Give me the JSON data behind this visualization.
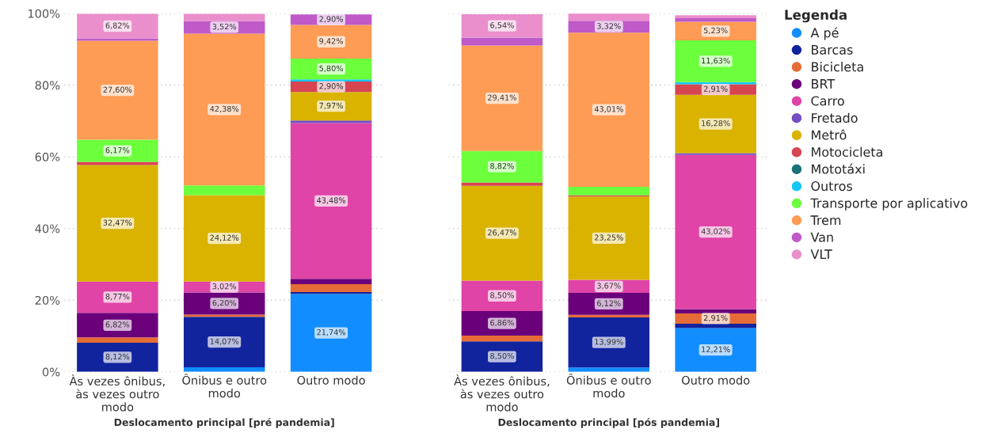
{
  "chart_data": [
    {
      "type": "bar",
      "stacked": true,
      "xlabel": "Deslocamento principal [pré pandemia]",
      "categories": [
        "Às vezes ônibus, às vezes outro modo",
        "Ônibus e outro modo",
        "Outro modo"
      ],
      "ylim": [
        0,
        100
      ],
      "yticks": [
        {
          "value": 0,
          "label": "0%"
        },
        {
          "value": 20,
          "label": "20%"
        },
        {
          "value": 40,
          "label": "40%"
        },
        {
          "value": 60,
          "label": "60%"
        },
        {
          "value": 80,
          "label": "80%"
        },
        {
          "value": 100,
          "label": "100%"
        }
      ],
      "grid": "y",
      "legend": "right",
      "legend_title": "Legenda",
      "series": [
        {
          "name": "A pé",
          "color": "#118dff",
          "values": [
            null,
            1.3,
            21.74
          ],
          "value_labels": [
            null,
            null,
            "21,74%"
          ]
        },
        {
          "name": "Barcas",
          "color": "#12239e",
          "values": [
            8.12,
            14.07,
            0.5
          ],
          "value_labels": [
            "8,12%",
            "14,07%",
            null
          ]
        },
        {
          "name": "Bicicleta",
          "color": "#e66c37",
          "values": [
            1.5,
            0.6,
            2.2
          ],
          "value_labels": [
            null,
            null,
            null
          ]
        },
        {
          "name": "BRT",
          "color": "#6b007b",
          "values": [
            6.82,
            6.2,
            1.5
          ],
          "value_labels": [
            "6,82%",
            "6,20%",
            null
          ]
        },
        {
          "name": "Carro",
          "color": "#e044a7",
          "values": [
            8.77,
            3.02,
            43.48
          ],
          "value_labels": [
            "8,77%",
            "3,02%",
            "43,48%"
          ]
        },
        {
          "name": "Fretado",
          "color": "#744ec2",
          "values": [
            null,
            null,
            0.7
          ],
          "value_labels": [
            null,
            null,
            null
          ]
        },
        {
          "name": "Metrô",
          "color": "#d9b300",
          "values": [
            32.47,
            24.12,
            7.97
          ],
          "value_labels": [
            "32,47%",
            "24,12%",
            "7,97%"
          ]
        },
        {
          "name": "Motocicleta",
          "color": "#d64550",
          "values": [
            0.9,
            null,
            2.9
          ],
          "value_labels": [
            null,
            null,
            "2,90%"
          ]
        },
        {
          "name": "Mototáxi",
          "color": "#197278",
          "values": [
            null,
            null,
            null
          ],
          "value_labels": [
            null,
            null,
            null
          ]
        },
        {
          "name": "Outros",
          "color": "#15c6f4",
          "values": [
            null,
            null,
            0.6
          ],
          "value_labels": [
            null,
            null,
            null
          ]
        },
        {
          "name": "Transporte por aplicativo",
          "color": "#6bff3c",
          "values": [
            6.17,
            2.7,
            5.8
          ],
          "value_labels": [
            "6,17%",
            null,
            "5,80%"
          ]
        },
        {
          "name": "Trem",
          "color": "#fe9b54",
          "values": [
            27.6,
            42.38,
            9.42
          ],
          "value_labels": [
            "27,60%",
            "42,38%",
            "9,42%"
          ]
        },
        {
          "name": "Van",
          "color": "#bf5ac8",
          "values": [
            0.7,
            3.52,
            2.9
          ],
          "value_labels": [
            null,
            "3,52%",
            "2,90%"
          ]
        },
        {
          "name": "VLT",
          "color": "#ea8fcc",
          "values": [
            6.82,
            2.0,
            null
          ],
          "value_labels": [
            "6,82%",
            null,
            null
          ]
        }
      ]
    },
    {
      "type": "bar",
      "stacked": true,
      "xlabel": "Deslocamento principal [pós pandemia]",
      "categories": [
        "Às vezes ônibus, às vezes outro modo",
        "Ônibus e outro modo",
        "Outro modo"
      ],
      "ylim": [
        0,
        100
      ],
      "tick_labels": "x",
      "grid": "y",
      "series": [
        {
          "color": "#118dff",
          "values": [
            null,
            1.2,
            12.21
          ],
          "value_labels": [
            null,
            null,
            "12,21%"
          ]
        },
        {
          "color": "#12239e",
          "values": [
            8.5,
            13.99,
            1.2
          ],
          "value_labels": [
            "8,50%",
            "13,99%",
            null
          ]
        },
        {
          "color": "#e66c37",
          "values": [
            1.6,
            0.7,
            2.91
          ],
          "value_labels": [
            null,
            null,
            "2,91%"
          ]
        },
        {
          "color": "#6b007b",
          "values": [
            6.86,
            6.12,
            1.2
          ],
          "value_labels": [
            "6,86%",
            "6,12%",
            null
          ]
        },
        {
          "color": "#e044a7",
          "values": [
            8.5,
            3.67,
            43.02
          ],
          "value_labels": [
            "8,50%",
            "3,67%",
            "43,02%"
          ]
        },
        {
          "color": "#744ec2",
          "values": [
            null,
            null,
            0.5
          ],
          "value_labels": [
            null,
            null,
            null
          ]
        },
        {
          "color": "#d9b300",
          "values": [
            26.47,
            23.25,
            16.28
          ],
          "value_labels": [
            "26,47%",
            "23,25%",
            "16,28%"
          ]
        },
        {
          "color": "#d64550",
          "values": [
            0.9,
            0.3,
            2.91
          ],
          "value_labels": [
            null,
            null,
            "2,91%"
          ]
        },
        {
          "color": "#197278",
          "values": [
            null,
            null,
            null
          ],
          "value_labels": [
            null,
            null,
            null
          ]
        },
        {
          "color": "#15c6f4",
          "values": [
            null,
            null,
            0.6
          ],
          "value_labels": [
            null,
            null,
            null
          ]
        },
        {
          "color": "#6bff3c",
          "values": [
            8.82,
            2.4,
            11.63
          ],
          "value_labels": [
            "8,82%",
            null,
            "11,63%"
          ]
        },
        {
          "color": "#fe9b54",
          "values": [
            29.41,
            43.01,
            5.23
          ],
          "value_labels": [
            "29,41%",
            "43,01%",
            "5,23%"
          ]
        },
        {
          "color": "#bf5ac8",
          "values": [
            2.2,
            3.32,
            1.0
          ],
          "value_labels": [
            null,
            "3,32%",
            null
          ]
        },
        {
          "color": "#ea8fcc",
          "values": [
            6.54,
            2.0,
            0.8
          ],
          "value_labels": [
            "6,54%",
            null,
            null
          ]
        }
      ]
    }
  ]
}
